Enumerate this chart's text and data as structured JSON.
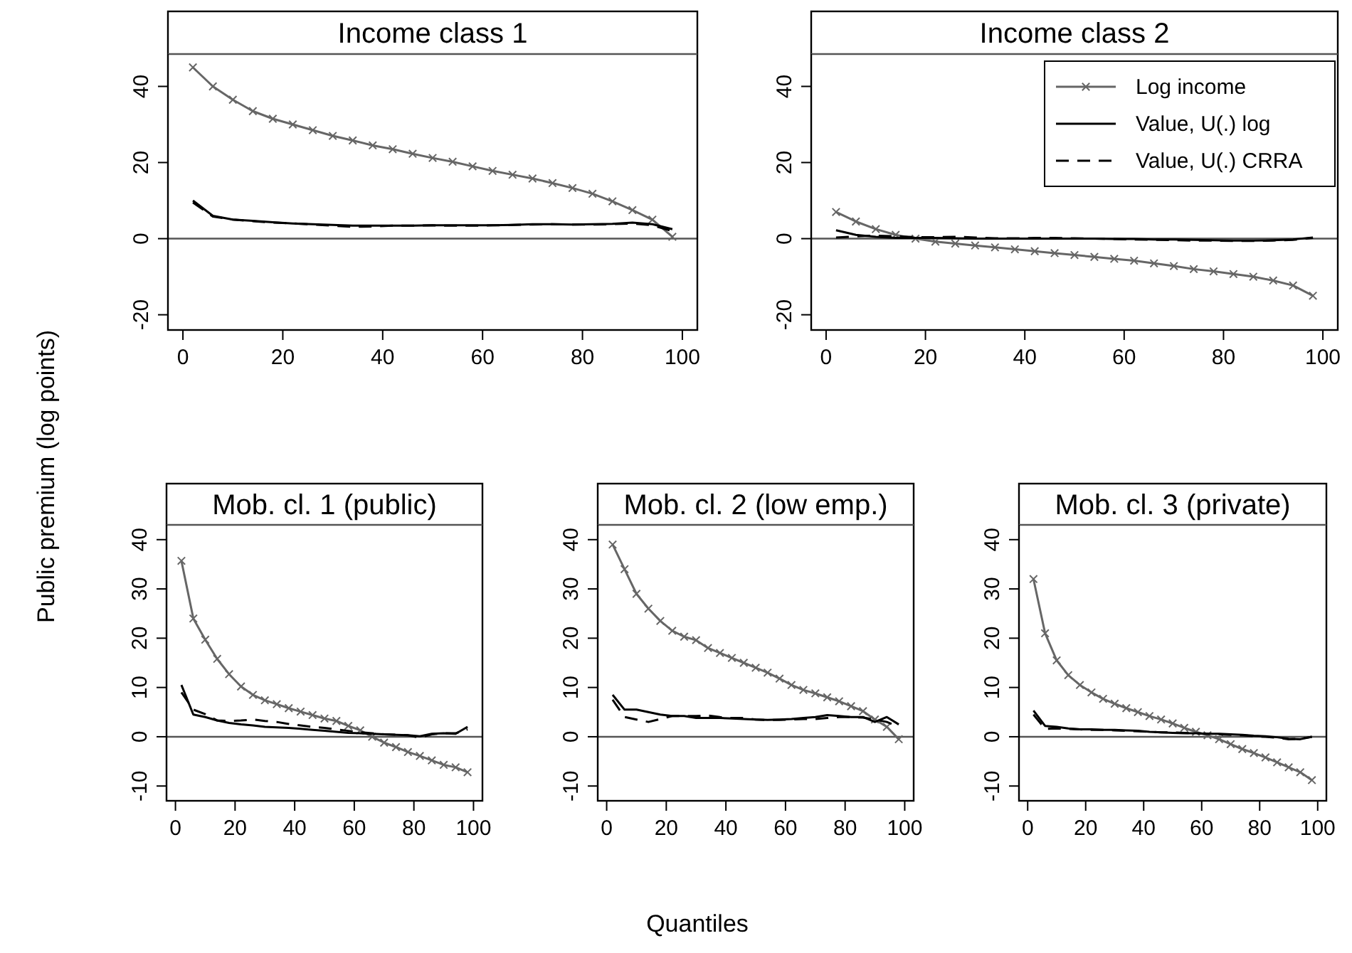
{
  "chart_data": [
    {
      "type": "line",
      "title": "Income class 1",
      "ylabel": "Public premium (log points)",
      "x": [
        2,
        6,
        10,
        14,
        18,
        22,
        26,
        30,
        34,
        38,
        42,
        46,
        50,
        54,
        58,
        62,
        66,
        70,
        74,
        78,
        82,
        86,
        90,
        94,
        98
      ],
      "xlim": [
        -3,
        103
      ],
      "xticks": [
        0,
        20,
        40,
        60,
        80,
        100
      ],
      "ylim": [
        -24,
        48.5
      ],
      "yticks": [
        -20,
        0,
        20,
        40
      ],
      "legend": false,
      "grid": false,
      "ref_lines": [
        {
          "axis": "y",
          "value": 0,
          "color": "#555555"
        }
      ],
      "series": [
        {
          "color": "#666666",
          "marker": "cross",
          "line_style": "solid",
          "values": [
            45,
            40,
            36.5,
            33.5,
            31.5,
            30,
            28.5,
            27,
            25.8,
            24.5,
            23.5,
            22.3,
            21.2,
            20.2,
            19,
            17.8,
            16.8,
            15.8,
            14.6,
            13.3,
            11.8,
            9.8,
            7.5,
            5,
            0.5
          ]
        },
        {
          "color": "#000000",
          "line_style": "solid",
          "values": [
            10,
            6,
            5,
            4.7,
            4.3,
            4,
            3.8,
            3.6,
            3.4,
            3.4,
            3.4,
            3.4,
            3.5,
            3.5,
            3.5,
            3.5,
            3.6,
            3.8,
            3.8,
            3.7,
            3.8,
            3.9,
            4.2,
            3.8,
            2.5
          ]
        },
        {
          "color": "#000000",
          "line_style": "dashed",
          "values": [
            9.5,
            5.8,
            5,
            4.6,
            4.2,
            4,
            3.7,
            3.4,
            3.1,
            3.2,
            3.4,
            3.4,
            3.5,
            3.4,
            3.4,
            3.5,
            3.6,
            3.7,
            3.8,
            3.7,
            3.7,
            3.8,
            4,
            3.5,
            2
          ]
        }
      ]
    },
    {
      "type": "line",
      "title": "Income class 2",
      "x": [
        2,
        6,
        10,
        14,
        18,
        22,
        26,
        30,
        34,
        38,
        42,
        46,
        50,
        54,
        58,
        62,
        66,
        70,
        74,
        78,
        82,
        86,
        90,
        94,
        98
      ],
      "xlim": [
        -3,
        103
      ],
      "xticks": [
        0,
        20,
        40,
        60,
        80,
        100
      ],
      "ylim": [
        -24,
        48.5
      ],
      "yticks": [
        -20,
        0,
        20,
        40
      ],
      "legend": "top right",
      "grid": false,
      "ref_lines": [
        {
          "axis": "y",
          "value": 0,
          "color": "#555555"
        }
      ],
      "series": [
        {
          "name": "Log income",
          "color": "#666666",
          "marker": "cross",
          "line_style": "solid",
          "values": [
            7,
            4.5,
            2.5,
            1,
            0,
            -0.8,
            -1.3,
            -1.8,
            -2.3,
            -2.8,
            -3.3,
            -3.8,
            -4.3,
            -4.8,
            -5.3,
            -5.8,
            -6.5,
            -7.2,
            -8,
            -8.6,
            -9.3,
            -10,
            -11,
            -12.3,
            -15
          ]
        },
        {
          "name": "Value, U(.) log",
          "color": "#000000",
          "line_style": "solid",
          "values": [
            2.2,
            1,
            0.5,
            0.2,
            0.2,
            0.2,
            0.1,
            0,
            0,
            0,
            0,
            0,
            0,
            0,
            -0.1,
            -0.1,
            -0.2,
            -0.2,
            -0.3,
            -0.4,
            -0.5,
            -0.5,
            -0.4,
            -0.2,
            0.3
          ]
        },
        {
          "name": "Value, U(.) CRRA",
          "color": "#000000",
          "line_style": "dashed",
          "values": [
            0.3,
            0.6,
            0.8,
            0.6,
            0.4,
            0.4,
            0.5,
            0.3,
            0.1,
            0.1,
            0.2,
            0.2,
            0.1,
            0,
            -0.1,
            -0.2,
            -0.3,
            -0.4,
            -0.5,
            -0.5,
            -0.6,
            -0.6,
            -0.5,
            -0.3,
            0.2
          ]
        }
      ]
    },
    {
      "type": "line",
      "title": "Mob. cl. 1 (public)",
      "x": [
        2,
        6,
        10,
        14,
        18,
        22,
        26,
        30,
        34,
        38,
        42,
        46,
        50,
        54,
        58,
        62,
        66,
        70,
        74,
        78,
        82,
        86,
        90,
        94,
        98
      ],
      "xlim": [
        -3,
        103
      ],
      "xticks": [
        0,
        20,
        40,
        60,
        80,
        100
      ],
      "ylim": [
        -13,
        43
      ],
      "yticks": [
        -10,
        0,
        10,
        20,
        30,
        40
      ],
      "legend": false,
      "grid": false,
      "ref_lines": [
        {
          "axis": "y",
          "value": 0,
          "color": "#555555"
        }
      ],
      "series": [
        {
          "color": "#666666",
          "marker": "cross",
          "line_style": "solid",
          "values": [
            35.7,
            24,
            19.7,
            15.8,
            12.7,
            10.2,
            8.5,
            7.4,
            6.6,
            5.8,
            5.1,
            4.4,
            3.7,
            3.2,
            2.2,
            1.3,
            0,
            -1.2,
            -2.1,
            -3.1,
            -3.9,
            -4.8,
            -5.7,
            -6.2,
            -7.2
          ]
        },
        {
          "color": "#000000",
          "line_style": "solid",
          "values": [
            10.5,
            4.5,
            4,
            3.3,
            2.8,
            2.5,
            2.3,
            2,
            1.9,
            1.8,
            1.6,
            1.4,
            1.2,
            1,
            0.8,
            0.7,
            0.6,
            0.5,
            0.4,
            0.3,
            0.1,
            0.6,
            0.7,
            0.6,
            2
          ]
        },
        {
          "color": "#000000",
          "line_style": "dashed",
          "values": [
            9,
            5.5,
            4.6,
            3.3,
            3.2,
            3.3,
            3.5,
            3.2,
            3,
            2.6,
            2.3,
            2,
            1.8,
            1.5,
            1.2,
            0.9,
            0.7,
            0.5,
            0.4,
            0.3,
            -0.2,
            0.5,
            0.7,
            0.7,
            1.5
          ]
        }
      ]
    },
    {
      "type": "line",
      "title": "Mob. cl. 2 (low emp.)",
      "xlabel": "Quantiles",
      "x": [
        2,
        6,
        10,
        14,
        18,
        22,
        26,
        30,
        34,
        38,
        42,
        46,
        50,
        54,
        58,
        62,
        66,
        70,
        74,
        78,
        82,
        86,
        90,
        94,
        98
      ],
      "xlim": [
        -3,
        103
      ],
      "xticks": [
        0,
        20,
        40,
        60,
        80,
        100
      ],
      "ylim": [
        -13,
        43
      ],
      "yticks": [
        -10,
        0,
        10,
        20,
        30,
        40
      ],
      "legend": false,
      "grid": false,
      "ref_lines": [
        {
          "axis": "y",
          "value": 0,
          "color": "#555555"
        }
      ],
      "series": [
        {
          "color": "#666666",
          "marker": "cross",
          "line_style": "solid",
          "values": [
            39,
            34,
            29,
            26,
            23.5,
            21.5,
            20.3,
            19.6,
            18,
            17,
            16,
            15,
            14,
            13,
            11.8,
            10.5,
            9.5,
            8.8,
            8,
            7.2,
            6.2,
            5.2,
            3.5,
            2,
            -0.5
          ]
        },
        {
          "color": "#000000",
          "line_style": "solid",
          "values": [
            8.5,
            5.5,
            5.5,
            5,
            4.5,
            4.2,
            4.2,
            3.8,
            3.8,
            3.8,
            3.7,
            3.6,
            3.5,
            3.4,
            3.5,
            3.6,
            3.8,
            4,
            4.4,
            4.2,
            4,
            4,
            3,
            4,
            2.5
          ]
        },
        {
          "color": "#000000",
          "line_style": "dashed",
          "values": [
            7.5,
            4,
            3.5,
            3,
            3.6,
            4.2,
            4.2,
            4.2,
            4.3,
            4,
            3.8,
            3.8,
            3.5,
            3.4,
            3.4,
            3.5,
            3.6,
            3.6,
            3.8,
            4,
            4,
            3.9,
            3.5,
            3,
            2
          ]
        }
      ]
    },
    {
      "type": "line",
      "title": "Mob. cl. 3 (private)",
      "x": [
        2,
        6,
        10,
        14,
        18,
        22,
        26,
        30,
        34,
        38,
        42,
        46,
        50,
        54,
        58,
        62,
        66,
        70,
        74,
        78,
        82,
        86,
        90,
        94,
        98
      ],
      "xlim": [
        -3,
        103
      ],
      "xticks": [
        0,
        20,
        40,
        60,
        80,
        100
      ],
      "ylim": [
        -13,
        43
      ],
      "yticks": [
        -10,
        0,
        10,
        20,
        30,
        40
      ],
      "legend": false,
      "grid": false,
      "ref_lines": [
        {
          "axis": "y",
          "value": 0,
          "color": "#555555"
        }
      ],
      "series": [
        {
          "color": "#666666",
          "marker": "cross",
          "line_style": "solid",
          "values": [
            32,
            21,
            15.5,
            12.5,
            10.5,
            9,
            7.7,
            6.7,
            5.8,
            5,
            4.2,
            3.5,
            2.7,
            1.8,
            1,
            0.3,
            -0.5,
            -1.5,
            -2.5,
            -3.3,
            -4.2,
            -5.2,
            -6.2,
            -7.2,
            -8.8
          ]
        },
        {
          "color": "#000000",
          "line_style": "solid",
          "values": [
            5.3,
            2.2,
            2,
            1.7,
            1.5,
            1.5,
            1.4,
            1.4,
            1.3,
            1.2,
            1,
            0.9,
            0.8,
            0.7,
            0.7,
            0.6,
            0.6,
            0.5,
            0.4,
            0.2,
            0.1,
            -0.1,
            -0.4,
            -0.5,
            0
          ]
        },
        {
          "color": "#000000",
          "line_style": "dashed",
          "values": [
            4.5,
            1.6,
            1.7,
            1.6,
            1.5,
            1.4,
            1.4,
            1.3,
            1.2,
            1.1,
            1,
            0.9,
            0.9,
            0.8,
            0.7,
            0.6,
            0.5,
            0.4,
            0.3,
            0.1,
            0,
            -0.2,
            -0.5,
            -0.4,
            0
          ]
        }
      ]
    }
  ]
}
